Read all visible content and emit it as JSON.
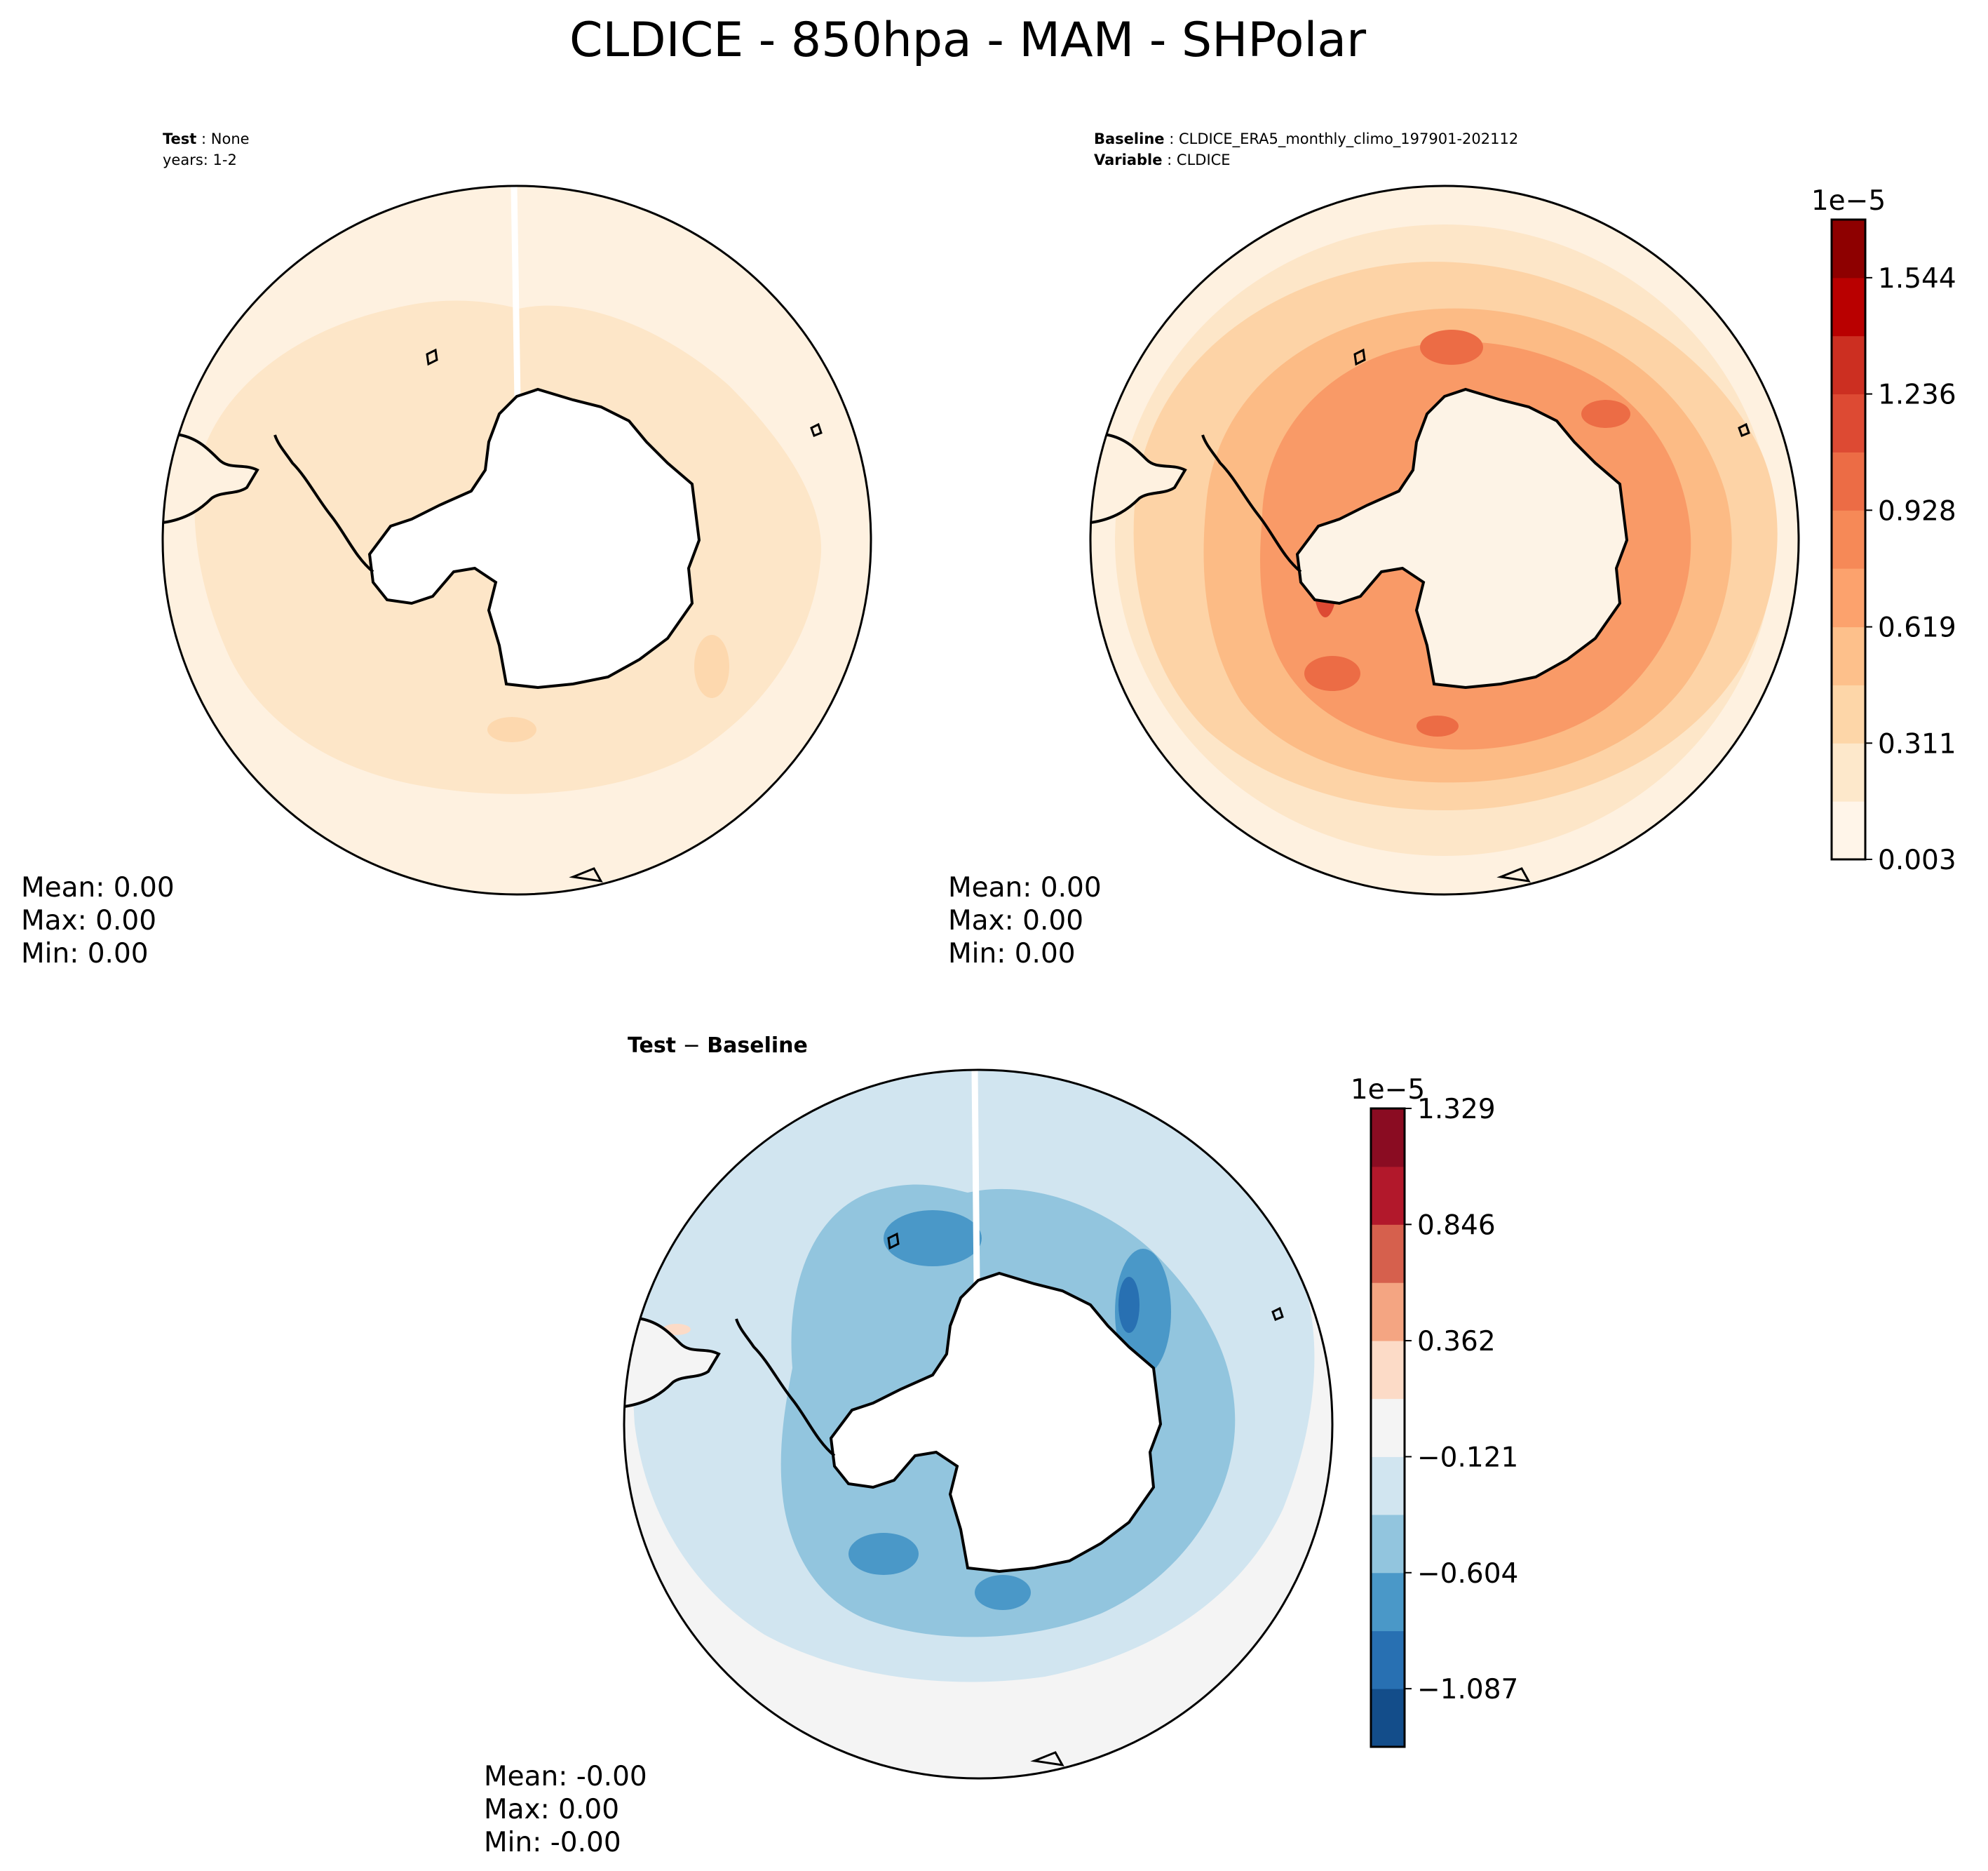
{
  "title": "CLDICE - 850hpa - MAM - SHPolar",
  "panels": [
    {
      "id": "test",
      "header": [
        {
          "bold": "Test",
          "sep": " : ",
          "value": "None"
        },
        {
          "bold": "",
          "sep": "",
          "value": "years: 1-2"
        }
      ],
      "stats": {
        "mean": "Mean:  0.00",
        "max": "Max:  0.00",
        "min": "Min:  0.00"
      }
    },
    {
      "id": "baseline",
      "header": [
        {
          "bold": "Baseline",
          "sep": " : ",
          "value": "CLDICE_ERA5_monthly_climo_197901-202112"
        },
        {
          "bold": "Variable",
          "sep": " : ",
          "value": "CLDICE"
        }
      ],
      "stats": {
        "mean": "Mean:  0.00",
        "max": "Max:  0.00",
        "min": "Min:  0.00"
      }
    },
    {
      "id": "diff",
      "header": [
        {
          "bold": "Test",
          "sep": " − ",
          "value": "Baseline"
        }
      ],
      "stats": {
        "mean": "Mean: -0.00",
        "max": "Max:  0.00",
        "min": "Min: -0.00"
      }
    }
  ],
  "chart_data": [
    {
      "type": "heatmap",
      "name": "test",
      "projection": "south-polar-stereographic",
      "field": "CLDICE",
      "description_values": {
        "mean": 0.0,
        "max": 0.0,
        "min": 0.0
      }
    },
    {
      "type": "heatmap",
      "name": "baseline",
      "projection": "south-polar-stereographic",
      "field": "CLDICE",
      "colorbar": {
        "exponent": "1e−5",
        "levels": [
          0.003,
          0.157,
          0.311,
          0.465,
          0.619,
          0.774,
          0.928,
          1.082,
          1.236,
          1.39,
          1.544,
          1.698
        ],
        "tick_labels": [
          "0.003",
          "0.311",
          "0.619",
          "0.928",
          "1.236",
          "1.544"
        ],
        "tick_values": [
          0.003,
          0.311,
          0.619,
          0.928,
          1.236,
          1.544
        ],
        "colors": [
          "#fff5e9",
          "#fde8cb",
          "#fdd6a8",
          "#fdc08b",
          "#fca26d",
          "#f68957",
          "#ec6c45",
          "#dd4a33",
          "#cc2f21",
          "#b90000",
          "#8e0000"
        ]
      }
    },
    {
      "type": "heatmap",
      "name": "difference",
      "projection": "south-polar-stereographic",
      "field": "Test - Baseline",
      "colorbar": {
        "exponent": "1e−5",
        "levels": [
          -1.329,
          -1.087,
          -0.846,
          -0.604,
          -0.362,
          -0.121,
          0.121,
          0.362,
          0.604,
          0.846,
          1.087,
          1.329
        ],
        "tick_labels": [
          "−1.087",
          "−0.604",
          "−0.121",
          "0.362",
          "0.846",
          "1.329"
        ],
        "tick_values": [
          -1.087,
          -0.604,
          -0.121,
          0.362,
          0.846,
          1.329
        ],
        "colors": [
          "#134d8a",
          "#2870b2",
          "#4a98c8",
          "#92c5de",
          "#d1e5f0",
          "#f4f4f4",
          "#fcdbc7",
          "#f4a582",
          "#d6604d",
          "#b2182b",
          "#8a0c22"
        ]
      }
    }
  ]
}
